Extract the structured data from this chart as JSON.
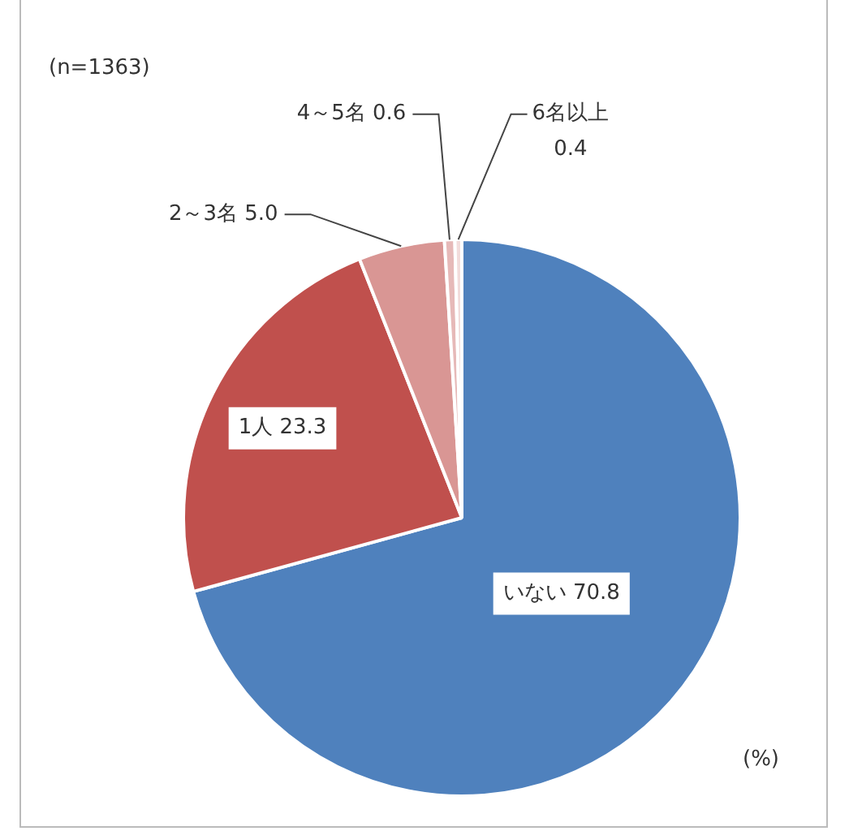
{
  "chart_data": {
    "type": "pie",
    "categories": [
      "いない",
      "1人",
      "2～3名",
      "4～5名",
      "6名以上"
    ],
    "values": [
      70.8,
      23.3,
      5.0,
      0.6,
      0.4
    ],
    "value_labels": [
      "70.8",
      "23.3",
      "5.0",
      "0.6",
      "0.4"
    ],
    "colors": [
      "#4f81bd",
      "#c0504d",
      "#d99694",
      "#e6b9b8",
      "#f2dcdb"
    ],
    "legend": false,
    "annotations": [
      "(n=1363)",
      "(%)"
    ]
  }
}
